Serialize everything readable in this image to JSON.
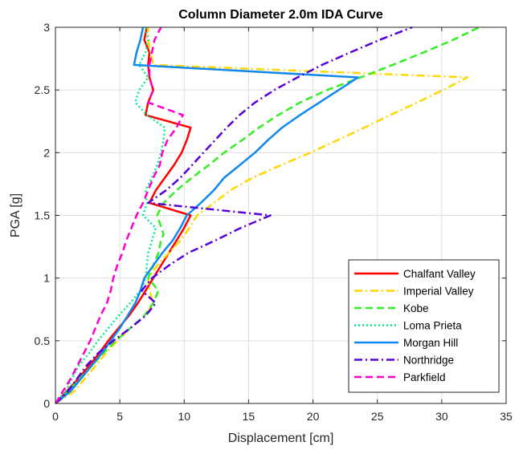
{
  "chart_data": {
    "type": "line",
    "title": "Column Diameter 2.0m IDA Curve",
    "xlabel": "Displacement [cm]",
    "ylabel": "PGA [g]",
    "xlim": [
      0,
      35
    ],
    "ylim": [
      0,
      3
    ],
    "xticks": [
      0,
      5,
      10,
      15,
      20,
      25,
      30,
      35
    ],
    "yticks": [
      0,
      0.5,
      1,
      1.5,
      2,
      2.5,
      3
    ],
    "xtick_labels": [
      "0",
      "5",
      "10",
      "15",
      "20",
      "25",
      "30",
      "35"
    ],
    "ytick_labels": [
      "0",
      "0.5",
      "1",
      "1.5",
      "2",
      "2.5",
      "3"
    ],
    "grid": true,
    "legend_position": "bottom-right",
    "series": [
      {
        "name": "Chalfant Valley",
        "color": "#ff0000",
        "dash": "solid",
        "points": [
          [
            0,
            0
          ],
          [
            0.9,
            0.1
          ],
          [
            1.8,
            0.2
          ],
          [
            2.6,
            0.3
          ],
          [
            3.4,
            0.4
          ],
          [
            4.1,
            0.5
          ],
          [
            4.9,
            0.6
          ],
          [
            5.7,
            0.7
          ],
          [
            6.4,
            0.8
          ],
          [
            7.0,
            0.9
          ],
          [
            7.6,
            1.0
          ],
          [
            8.2,
            1.1
          ],
          [
            8.8,
            1.2
          ],
          [
            9.4,
            1.3
          ],
          [
            10.0,
            1.4
          ],
          [
            10.5,
            1.5
          ],
          [
            7.3,
            1.6
          ],
          [
            7.8,
            1.7
          ],
          [
            8.5,
            1.8
          ],
          [
            9.2,
            1.9
          ],
          [
            9.8,
            2.0
          ],
          [
            10.2,
            2.1
          ],
          [
            10.5,
            2.2
          ],
          [
            7.0,
            2.3
          ],
          [
            7.2,
            2.4
          ],
          [
            7.6,
            2.5
          ],
          [
            7.3,
            2.6
          ],
          [
            7.2,
            2.7
          ],
          [
            7.3,
            2.8
          ],
          [
            6.9,
            2.9
          ],
          [
            7.1,
            3.0
          ]
        ]
      },
      {
        "name": "Imperial Valley",
        "color": "#ffd700",
        "dash": "dashdot",
        "points": [
          [
            0,
            0
          ],
          [
            1.5,
            0.1
          ],
          [
            2.3,
            0.2
          ],
          [
            3.1,
            0.3
          ],
          [
            3.9,
            0.4
          ],
          [
            4.8,
            0.5
          ],
          [
            5.8,
            0.6
          ],
          [
            7.0,
            0.7
          ],
          [
            7.6,
            0.8
          ],
          [
            7.3,
            0.9
          ],
          [
            7.2,
            1.0
          ],
          [
            7.9,
            1.1
          ],
          [
            8.8,
            1.2
          ],
          [
            9.7,
            1.3
          ],
          [
            10.4,
            1.4
          ],
          [
            11.0,
            1.5
          ],
          [
            12.3,
            1.6
          ],
          [
            13.6,
            1.7
          ],
          [
            15.3,
            1.8
          ],
          [
            17.5,
            1.9
          ],
          [
            19.8,
            2.0
          ],
          [
            21.9,
            2.1
          ],
          [
            24.0,
            2.2
          ],
          [
            26.0,
            2.3
          ],
          [
            28.1,
            2.4
          ],
          [
            30.1,
            2.5
          ],
          [
            32.0,
            2.6
          ],
          [
            7.6,
            2.7
          ],
          [
            7.4,
            2.8
          ],
          [
            7.2,
            2.9
          ],
          [
            7.2,
            3.0
          ]
        ]
      },
      {
        "name": "Kobe",
        "color": "#33ee22",
        "dash": "dashed",
        "points": [
          [
            0,
            0
          ],
          [
            1.0,
            0.1
          ],
          [
            1.9,
            0.2
          ],
          [
            2.8,
            0.3
          ],
          [
            3.7,
            0.4
          ],
          [
            4.7,
            0.5
          ],
          [
            5.8,
            0.6
          ],
          [
            6.9,
            0.7
          ],
          [
            7.6,
            0.8
          ],
          [
            8.0,
            0.9
          ],
          [
            7.2,
            1.0
          ],
          [
            7.6,
            1.1
          ],
          [
            8.0,
            1.2
          ],
          [
            8.2,
            1.3
          ],
          [
            8.4,
            1.35
          ],
          [
            7.9,
            1.5
          ],
          [
            8.4,
            1.6
          ],
          [
            9.4,
            1.7
          ],
          [
            10.6,
            1.8
          ],
          [
            11.9,
            1.9
          ],
          [
            13.1,
            2.0
          ],
          [
            14.5,
            2.1
          ],
          [
            15.8,
            2.2
          ],
          [
            17.3,
            2.3
          ],
          [
            19.0,
            2.4
          ],
          [
            21.1,
            2.5
          ],
          [
            23.7,
            2.6
          ],
          [
            26.2,
            2.7
          ],
          [
            28.6,
            2.8
          ],
          [
            30.9,
            2.9
          ],
          [
            32.9,
            3.0
          ]
        ]
      },
      {
        "name": "Loma Prieta",
        "color": "#00ee88",
        "dash": "dotted",
        "points": [
          [
            0,
            0
          ],
          [
            0.8,
            0.1
          ],
          [
            1.3,
            0.2
          ],
          [
            1.8,
            0.3
          ],
          [
            2.6,
            0.4
          ],
          [
            3.3,
            0.5
          ],
          [
            4.1,
            0.6
          ],
          [
            4.9,
            0.7
          ],
          [
            5.8,
            0.8
          ],
          [
            6.6,
            0.9
          ],
          [
            7.0,
            1.0
          ],
          [
            7.1,
            1.1
          ],
          [
            7.2,
            1.2
          ],
          [
            7.5,
            1.3
          ],
          [
            7.8,
            1.4
          ],
          [
            6.8,
            1.5
          ],
          [
            7.1,
            1.6
          ],
          [
            7.0,
            1.7
          ],
          [
            7.5,
            1.8
          ],
          [
            7.9,
            1.9
          ],
          [
            8.2,
            2.0
          ],
          [
            8.4,
            2.1
          ],
          [
            8.5,
            2.2
          ],
          [
            7.1,
            2.3
          ],
          [
            6.2,
            2.4
          ],
          [
            6.5,
            2.5
          ],
          [
            7.2,
            2.6
          ],
          [
            6.5,
            2.7
          ],
          [
            7.0,
            2.8
          ],
          [
            7.2,
            2.9
          ],
          [
            7.0,
            3.0
          ]
        ]
      },
      {
        "name": "Morgan Hill",
        "color": "#1188ee",
        "dash": "solid",
        "points": [
          [
            0,
            0
          ],
          [
            1.2,
            0.1
          ],
          [
            2.0,
            0.2
          ],
          [
            2.8,
            0.3
          ],
          [
            3.6,
            0.4
          ],
          [
            4.3,
            0.5
          ],
          [
            5.0,
            0.6
          ],
          [
            5.6,
            0.7
          ],
          [
            6.2,
            0.8
          ],
          [
            6.6,
            0.9
          ],
          [
            6.9,
            1.0
          ],
          [
            7.6,
            1.1
          ],
          [
            8.3,
            1.2
          ],
          [
            9.1,
            1.3
          ],
          [
            9.7,
            1.4
          ],
          [
            10.2,
            1.5
          ],
          [
            11.3,
            1.6
          ],
          [
            12.3,
            1.7
          ],
          [
            13.1,
            1.8
          ],
          [
            14.3,
            1.9
          ],
          [
            15.5,
            2.0
          ],
          [
            16.5,
            2.1
          ],
          [
            17.6,
            2.2
          ],
          [
            19.0,
            2.3
          ],
          [
            20.5,
            2.4
          ],
          [
            22.0,
            2.5
          ],
          [
            23.5,
            2.6
          ],
          [
            6.1,
            2.7
          ],
          [
            6.3,
            2.8
          ],
          [
            6.6,
            2.9
          ],
          [
            6.8,
            3.0
          ]
        ]
      },
      {
        "name": "Northridge",
        "color": "#5500dd",
        "dash": "dashdot",
        "points": [
          [
            0,
            0
          ],
          [
            1.0,
            0.1
          ],
          [
            1.7,
            0.2
          ],
          [
            2.4,
            0.3
          ],
          [
            3.3,
            0.4
          ],
          [
            4.5,
            0.5
          ],
          [
            5.8,
            0.6
          ],
          [
            7.0,
            0.7
          ],
          [
            7.8,
            0.8
          ],
          [
            6.7,
            0.9
          ],
          [
            7.5,
            1.0
          ],
          [
            8.8,
            1.1
          ],
          [
            10.3,
            1.2
          ],
          [
            12.4,
            1.3
          ],
          [
            14.4,
            1.4
          ],
          [
            16.7,
            1.5
          ],
          [
            7.2,
            1.6
          ],
          [
            8.6,
            1.7
          ],
          [
            9.7,
            1.8
          ],
          [
            10.6,
            1.9
          ],
          [
            11.5,
            2.0
          ],
          [
            12.4,
            2.1
          ],
          [
            13.3,
            2.2
          ],
          [
            14.3,
            2.3
          ],
          [
            15.5,
            2.4
          ],
          [
            17.0,
            2.5
          ],
          [
            18.8,
            2.6
          ],
          [
            20.7,
            2.7
          ],
          [
            22.9,
            2.8
          ],
          [
            25.2,
            2.9
          ],
          [
            27.7,
            3.0
          ]
        ]
      },
      {
        "name": "Parkfield",
        "color": "#ff00cc",
        "dash": "dashed",
        "points": [
          [
            0,
            0
          ],
          [
            0.6,
            0.1
          ],
          [
            1.2,
            0.2
          ],
          [
            1.7,
            0.3
          ],
          [
            2.2,
            0.4
          ],
          [
            2.7,
            0.5
          ],
          [
            3.1,
            0.6
          ],
          [
            3.5,
            0.7
          ],
          [
            4.0,
            0.8
          ],
          [
            4.3,
            0.9
          ],
          [
            4.5,
            1.0
          ],
          [
            4.8,
            1.1
          ],
          [
            5.2,
            1.2
          ],
          [
            5.5,
            1.3
          ],
          [
            5.9,
            1.4
          ],
          [
            6.3,
            1.5
          ],
          [
            6.8,
            1.6
          ],
          [
            7.2,
            1.7
          ],
          [
            7.6,
            1.8
          ],
          [
            8.1,
            1.9
          ],
          [
            8.3,
            2.0
          ],
          [
            8.7,
            2.1
          ],
          [
            9.4,
            2.2
          ],
          [
            9.9,
            2.3
          ],
          [
            7.2,
            2.4
          ],
          [
            7.6,
            2.5
          ],
          [
            7.3,
            2.6
          ],
          [
            7.3,
            2.7
          ],
          [
            7.5,
            2.8
          ],
          [
            7.7,
            2.9
          ],
          [
            8.2,
            3.0
          ]
        ]
      }
    ]
  }
}
